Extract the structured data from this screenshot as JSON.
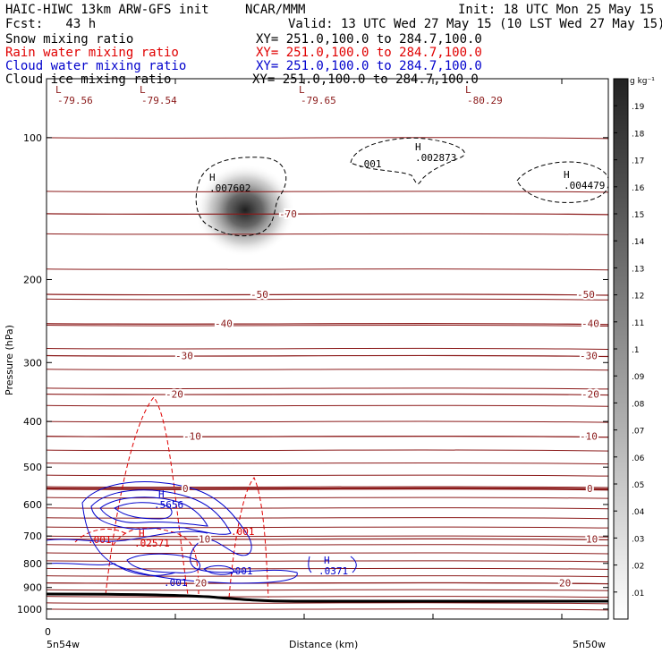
{
  "header": {
    "model": "HAIC-HIWC 13km ARW-GFS init",
    "org": "NCAR/MMM",
    "init": "Init: 18 UTC Mon 25 May 15",
    "fcst": "Fcst:   43 h",
    "valid": "Valid: 13 UTC Wed 27 May 15 (10 LST Wed 27 May 15)",
    "fields": [
      {
        "name": "Snow mixing ratio",
        "xy": "XY= 251.0,100.0 to 284.7,100.0",
        "color": "#000000"
      },
      {
        "name": "Rain water mixing ratio",
        "xy": "XY= 251.0,100.0 to 284.7,100.0",
        "color": "#e00000"
      },
      {
        "name": "Cloud water mixing ratio",
        "xy": "XY= 251.0,100.0 to 284.7,100.0",
        "color": "#0000cc"
      },
      {
        "name": "Cloud ice mixing ratio",
        "xy": "XY= 251.0,100.0 to 284.7,100.0",
        "color": "#000000"
      }
    ]
  },
  "chart_data": {
    "type": "contour cross-section",
    "ylabel": "Pressure (hPa)",
    "xlabel": "Distance (km)",
    "y_scale": "log",
    "ylim": [
      1050,
      75
    ],
    "y_ticks": [
      100,
      200,
      300,
      400,
      500,
      600,
      700,
      800,
      900,
      1000
    ],
    "x_tick_label": "0",
    "x_left_label": "5n54w",
    "x_right_label": "5n50w",
    "colorbar": {
      "unit": "g kg⁻¹",
      "levels": [
        ".01",
        ".02",
        ".03",
        ".04",
        ".05",
        ".06",
        ".07",
        ".08",
        ".09",
        ".1",
        ".11",
        ".12",
        ".13",
        ".14",
        ".15",
        ".16",
        ".17",
        ".18",
        ".19"
      ]
    },
    "temperature_contours": [
      {
        "label": "-70",
        "p": 145
      },
      {
        "label": "-50",
        "p": 215
      },
      {
        "label": "-40",
        "p": 248
      },
      {
        "label": "-30",
        "p": 290
      },
      {
        "label": "-20",
        "p": 350
      },
      {
        "label": "-10",
        "p": 430
      },
      {
        "label": "0",
        "p": 555
      },
      {
        "label": "10",
        "p": 710
      },
      {
        "label": "20",
        "p": 880
      }
    ],
    "temperature_minima": [
      {
        "mark": "L",
        "value": "-79.56"
      },
      {
        "mark": "L",
        "value": "-79.54"
      },
      {
        "mark": "L",
        "value": "-79.65"
      },
      {
        "mark": "L",
        "value": "-80.29"
      }
    ],
    "ice_maxima": [
      {
        "mark": "H",
        "value": ".007602"
      },
      {
        "mark": "H",
        "value": ".002873"
      },
      {
        "mark": "H",
        "value": ".004479"
      }
    ],
    "ice_contour_label": ".001",
    "rain_maxima": [
      {
        "mark": "H",
        "value": ".02571"
      }
    ],
    "rain_contour_labels": [
      ".001",
      ".001"
    ],
    "cloud_water_maxima": [
      {
        "mark": "H",
        "value": ".5656"
      },
      {
        "mark": "H",
        "value": ".0371"
      }
    ],
    "cloud_water_contour_labels": [
      ".001",
      ".001"
    ],
    "colors": {
      "temperature": "#8b1a1a",
      "rain": "#e00000",
      "cloud_water": "#0000cc",
      "ice": "#000000",
      "terrain": "#000000"
    }
  }
}
